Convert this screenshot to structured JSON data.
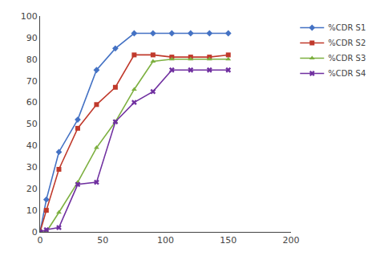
{
  "chart_data": {
    "type": "line",
    "x": [
      0,
      5,
      15,
      30,
      45,
      60,
      75,
      90,
      105,
      120,
      135,
      150
    ],
    "series": [
      {
        "name": "%CDR S1",
        "color": "#4472C4",
        "marker": "diamond",
        "values": [
          0,
          15,
          37,
          52,
          75,
          85,
          92,
          92,
          92,
          92,
          92,
          92
        ]
      },
      {
        "name": "%CDR S2",
        "color": "#C0392B",
        "marker": "square",
        "values": [
          0,
          10,
          29,
          48,
          59,
          67,
          82,
          82,
          81,
          81,
          81,
          82
        ]
      },
      {
        "name": "%CDR S3",
        "color": "#7DB040",
        "marker": "triangle-up",
        "values": [
          0,
          0,
          9,
          23,
          39,
          51,
          66,
          79,
          80,
          80,
          80,
          80
        ]
      },
      {
        "name": "%CDR S4",
        "color": "#7030A0",
        "marker": "x",
        "values": [
          0,
          1,
          2,
          22,
          23,
          51,
          60,
          65,
          75,
          75,
          75,
          75
        ]
      }
    ],
    "xlim": [
      0,
      200
    ],
    "ylim": [
      0,
      100
    ],
    "xticks": [
      0,
      50,
      100,
      150,
      200
    ],
    "yticks": [
      0,
      10,
      20,
      30,
      40,
      50,
      60,
      70,
      80,
      90,
      100
    ],
    "grid": false,
    "legend": "right"
  }
}
